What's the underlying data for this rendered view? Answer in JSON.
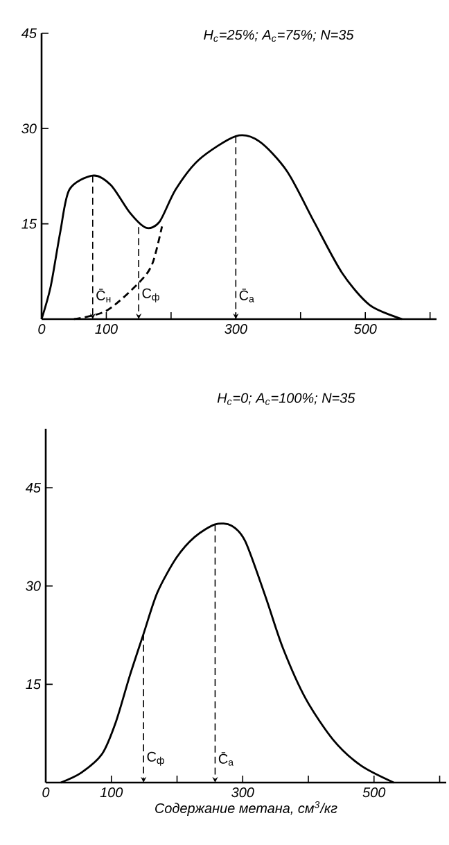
{
  "chart_data": [
    {
      "type": "line",
      "title": "H$_{c}$=25%; A$_{c}$=75%; N=35",
      "xlim": [
        0,
        610
      ],
      "ylim": [
        0,
        45
      ],
      "xticks": [
        0,
        100,
        {
          "value": 200,
          "label": null
        },
        300,
        {
          "value": 400,
          "label": null
        },
        500,
        {
          "value": 600,
          "label": null
        }
      ],
      "yticks": [
        15,
        30,
        45
      ],
      "marker": "none",
      "series": [
        {
          "color": "#000000",
          "line_style": "solid",
          "x": [
            0,
            14,
            29,
            43,
            79,
            107,
            136,
            161,
            182,
            207,
            243,
            300,
            336,
            379,
            421,
            464,
            507,
            557
          ],
          "values": [
            0,
            5.1,
            13.8,
            20.4,
            22.6,
            21.1,
            16.8,
            14.4,
            15.3,
            20.4,
            25.1,
            28.8,
            28,
            23.3,
            15.3,
            7.3,
            2.2,
            0
          ]
        },
        {
          "color": "#000000",
          "line_style": "dashed",
          "x": [
            50,
            100,
            150,
            171,
            186
          ],
          "values": [
            0,
            1.3,
            5.7,
            8.7,
            14.6
          ]
        }
      ],
      "annotations": [
        {
          "text": "C̄$_{н}$",
          "x": 79,
          "y": 22.6
        },
        {
          "text": "C$_{ф}$",
          "x": 150,
          "y": 14.5
        },
        {
          "text": "C̄$_{a}$",
          "x": 300,
          "y": 28.8
        }
      ]
    },
    {
      "type": "line",
      "title": "H$_{c}$=0; A$_{c}$=100%; N=35",
      "xlabel": "Содержание метана, см$^{3}$/кг",
      "xlim": [
        0,
        610
      ],
      "ylim": [
        0,
        54
      ],
      "xticks": [
        0,
        100,
        {
          "value": 200,
          "label": null
        },
        300,
        {
          "value": 400,
          "label": null
        },
        500,
        {
          "value": 600,
          "label": null
        }
      ],
      "yticks": [
        15,
        30,
        45
      ],
      "marker": "none",
      "series": [
        {
          "color": "#000000",
          "line_style": "solid",
          "x": [
            23,
            54,
            86,
            107,
            128,
            149,
            170,
            199,
            227,
            258,
            283,
            304,
            335,
            361,
            396,
            438,
            480,
            530
          ],
          "values": [
            0,
            1.5,
            4.4,
            9.3,
            16.3,
            22.7,
            29,
            34.3,
            37.5,
            39.4,
            39.2,
            36.8,
            28.3,
            20.6,
            12.8,
            6.5,
            2.6,
            0
          ]
        }
      ],
      "annotations": [
        {
          "text": "C$_{ф}$",
          "x": 149,
          "y": 22.7
        },
        {
          "text": "C̄$_{a}$",
          "x": 258,
          "y": 39.4
        }
      ]
    }
  ]
}
